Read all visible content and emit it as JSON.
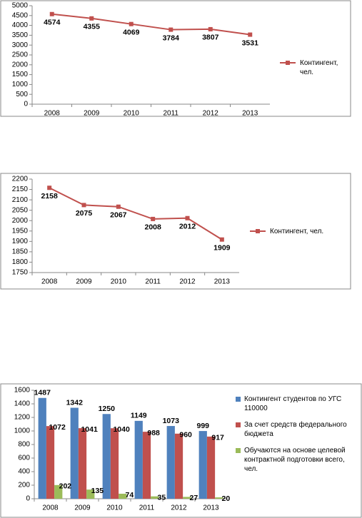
{
  "chart_data": [
    {
      "type": "line",
      "categories": [
        "2008",
        "2009",
        "2010",
        "2011",
        "2012",
        "2013"
      ],
      "series": [
        {
          "name": "Контингент, чел.",
          "color": "#c0504d",
          "values": [
            4574,
            4355,
            4069,
            3784,
            3807,
            3531
          ]
        }
      ],
      "ylim": [
        0,
        5000
      ],
      "yticks": [
        0,
        500,
        1000,
        1500,
        2000,
        2500,
        3000,
        3500,
        4000,
        4500,
        5000
      ],
      "legend": "right"
    },
    {
      "type": "line",
      "categories": [
        "2008",
        "2009",
        "2010",
        "2011",
        "2012",
        "2013"
      ],
      "series": [
        {
          "name": "Контингент, чел.",
          "color": "#c0504d",
          "values": [
            2158,
            2075,
            2067,
            2008,
            2012,
            1909
          ]
        }
      ],
      "ylim": [
        1750,
        2200
      ],
      "yticks": [
        1750,
        1800,
        1850,
        1900,
        1950,
        2000,
        2050,
        2100,
        2150,
        2200
      ],
      "legend": "right"
    },
    {
      "type": "bar",
      "categories": [
        "2008",
        "2009",
        "2010",
        "2011",
        "2012",
        "2013"
      ],
      "series": [
        {
          "name": "Контингент студентов по УГС 110000",
          "color": "#4f81bd",
          "values": [
            1487,
            1342,
            1250,
            1149,
            1073,
            999
          ]
        },
        {
          "name": "За счет средств федерального бюджета",
          "color": "#c0504d",
          "values": [
            1072,
            1041,
            1040,
            988,
            960,
            917
          ]
        },
        {
          "name": "Обучаются на основе целевой контрактной подготовки всего, чел.",
          "color": "#9bbb59",
          "values": [
            202,
            135,
            74,
            35,
            27,
            20
          ]
        }
      ],
      "ylim": [
        0,
        1600
      ],
      "yticks": [
        0,
        200,
        400,
        600,
        800,
        1000,
        1200,
        1400,
        1600
      ],
      "legend": "right"
    }
  ]
}
